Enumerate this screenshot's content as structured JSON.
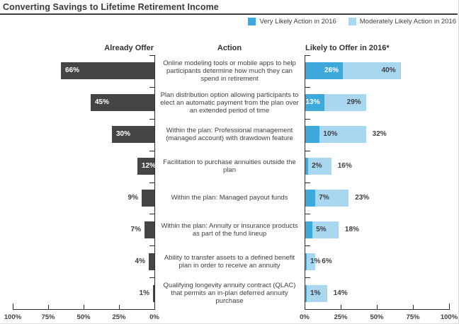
{
  "title": "Converting Savings to Lifetime Retirement Income",
  "legend": [
    {
      "label": "Very Likely Action in 2016",
      "color": "#3FA9DC"
    },
    {
      "label": "Moderately Likely Action in 2016",
      "color": "#A9D7EF"
    }
  ],
  "columns": {
    "left": "Already Offer",
    "middle": "Action",
    "right": "Likely to Offer in 2016*"
  },
  "colors": {
    "already_offer_bar": "#454547",
    "very_likely": "#3FA9DC",
    "moderately_likely": "#A9D7EF",
    "axis": "#2b2b2b",
    "text": "#3f3f41",
    "bar_label_light": "#ffffff"
  },
  "axes": {
    "left_ticks": [
      "100%",
      "75%",
      "50%",
      "25%",
      "0%"
    ],
    "right_ticks": [
      "0%",
      "25%",
      "50%",
      "75%",
      "100%"
    ]
  },
  "chart_data": {
    "type": "bar",
    "orientation": "horizontal",
    "title": "Converting Savings to Lifetime Retirement Income",
    "categories": [
      "Online modeling tools or mobile apps to help participants determine how much they can spend in retirement",
      "Plan distribution option allowing participants to elect an automatic payment from the plan over an extended period of time",
      "Within the plan: Professional management (managed account) with drawdown feature",
      "Facilitation to purchase annuities outside the plan",
      "Within the plan: Managed payout funds",
      "Within the plan: Annuity or insurance products as part of the fund lineup",
      "Ability to transfer assets to a defined benefit plan in order to receive an annuity",
      "Qualifying longevity annuity contract (QLAC) that permits an in-plan deferred annuity purchase"
    ],
    "series": [
      {
        "name": "Already Offer",
        "values": [
          66,
          45,
          30,
          12,
          9,
          7,
          4,
          1
        ]
      },
      {
        "name": "Very Likely Action in 2016",
        "values": [
          26,
          13,
          10,
          2,
          7,
          5,
          1,
          1
        ]
      },
      {
        "name": "Moderately Likely Action in 2016",
        "values": [
          40,
          29,
          32,
          16,
          23,
          18,
          6,
          14
        ]
      }
    ],
    "xlim": [
      0,
      100
    ],
    "x_tick_step": 25,
    "legend_position": "top-right",
    "value_suffix": "%",
    "grid": false
  }
}
